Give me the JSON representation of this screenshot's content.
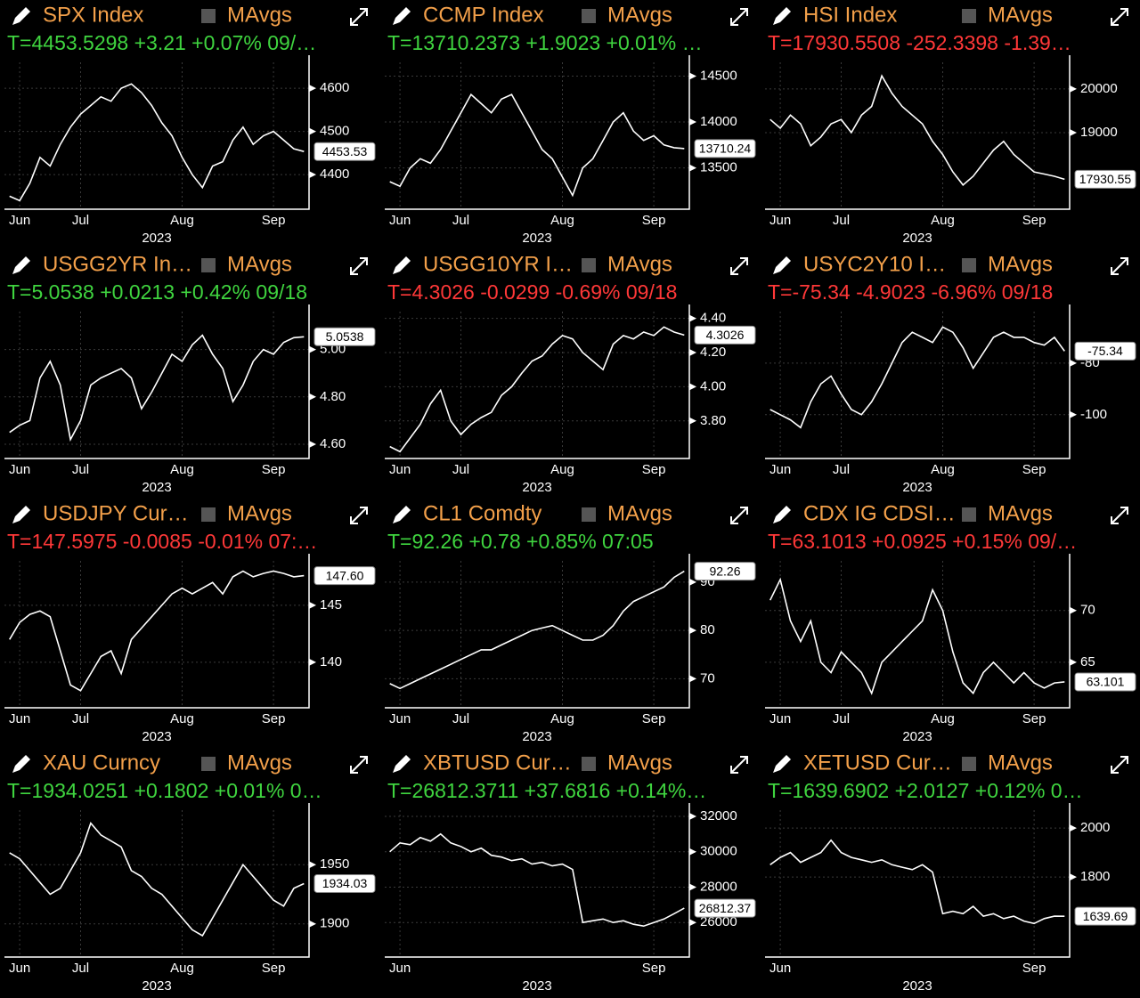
{
  "chart_data": [
    {
      "type": "line",
      "title": "SPX Index",
      "legend": "MAvgs",
      "quote": "T=4453.5298 +3.21 +0.07% 09/…",
      "quote_color": "#3fd43f",
      "title_color": "#f3a04a",
      "color": "#ffffff",
      "grid": true,
      "categories": [
        null,
        "Jun",
        null,
        null,
        null,
        null,
        null,
        "Jul",
        null,
        null,
        null,
        null,
        null,
        null,
        null,
        null,
        null,
        "Aug",
        null,
        null,
        null,
        null,
        null,
        null,
        null,
        null,
        "Sep",
        null,
        null,
        null
      ],
      "xlabel": "2023",
      "values": [
        4350,
        4340,
        4380,
        4440,
        4420,
        4470,
        4510,
        4540,
        4560,
        4580,
        4570,
        4600,
        4610,
        4590,
        4560,
        4520,
        4490,
        4440,
        4400,
        4370,
        4420,
        4430,
        4480,
        4510,
        4470,
        4490,
        4500,
        4480,
        4460,
        4453.53
      ],
      "ylim": [
        4320,
        4660
      ],
      "yticks": [
        4400,
        4500,
        4600
      ],
      "last_value": 4453.53
    },
    {
      "type": "line",
      "title": "CCMP Index",
      "legend": "MAvgs",
      "quote": "T=13710.2373 +1.9023 +0.01% …",
      "quote_color": "#3fd43f",
      "title_color": "#f3a04a",
      "color": "#ffffff",
      "grid": true,
      "categories": [
        null,
        "Jun",
        null,
        null,
        null,
        null,
        null,
        "Jul",
        null,
        null,
        null,
        null,
        null,
        null,
        null,
        null,
        null,
        "Aug",
        null,
        null,
        null,
        null,
        null,
        null,
        null,
        null,
        "Sep",
        null,
        null,
        null
      ],
      "xlabel": "2023",
      "values": [
        13350,
        13300,
        13500,
        13600,
        13550,
        13700,
        13900,
        14100,
        14300,
        14200,
        14100,
        14250,
        14300,
        14100,
        13900,
        13700,
        13600,
        13400,
        13200,
        13500,
        13600,
        13800,
        14000,
        14100,
        13900,
        13800,
        13850,
        13750,
        13720,
        13710.24
      ],
      "ylim": [
        13050,
        14650
      ],
      "yticks": [
        13500,
        14000,
        14500
      ],
      "last_value": 13710.24
    },
    {
      "type": "line",
      "title": "HSI Index",
      "legend": "MAvgs",
      "quote": "T=17930.5508 -252.3398 -1.39…",
      "quote_color": "#ff3838",
      "title_color": "#f3a04a",
      "color": "#ffffff",
      "grid": true,
      "categories": [
        null,
        "Jun",
        null,
        null,
        null,
        null,
        null,
        "Jul",
        null,
        null,
        null,
        null,
        null,
        null,
        null,
        null,
        null,
        "Aug",
        null,
        null,
        null,
        null,
        null,
        null,
        null,
        null,
        "Sep",
        null,
        null,
        null
      ],
      "xlabel": "2023",
      "values": [
        19300,
        19100,
        19400,
        19200,
        18700,
        18900,
        19200,
        19300,
        19000,
        19400,
        19600,
        20300,
        19900,
        19600,
        19400,
        19200,
        18800,
        18500,
        18100,
        17800,
        18000,
        18300,
        18600,
        18800,
        18500,
        18300,
        18100,
        18050,
        18000,
        17930.55
      ],
      "ylim": [
        17245,
        20610
      ],
      "yticks": [
        19000,
        20000
      ],
      "last_value": 17930.55
    },
    {
      "type": "line",
      "title": "USGG2YR In…",
      "legend": "MAvgs",
      "quote": "T=5.0538 +0.0213 +0.42% 09/18",
      "quote_color": "#3fd43f",
      "title_color": "#f3a04a",
      "color": "#ffffff",
      "grid": true,
      "categories": [
        null,
        "Jun",
        null,
        null,
        null,
        null,
        null,
        "Jul",
        null,
        null,
        null,
        null,
        null,
        null,
        null,
        null,
        null,
        "Aug",
        null,
        null,
        null,
        null,
        null,
        null,
        null,
        null,
        "Sep",
        null,
        null,
        null
      ],
      "xlabel": "2023",
      "values": [
        4.65,
        4.68,
        4.7,
        4.88,
        4.95,
        4.85,
        4.62,
        4.7,
        4.85,
        4.88,
        4.9,
        4.92,
        4.88,
        4.75,
        4.82,
        4.9,
        4.98,
        4.95,
        5.02,
        5.06,
        4.98,
        4.92,
        4.78,
        4.85,
        4.95,
        5,
        4.98,
        5.03,
        5.05,
        5.0538
      ],
      "ylim": [
        4.54,
        5.16
      ],
      "yticks": [
        {
          "value": 4.6,
          "label": "4.60"
        },
        {
          "value": 4.8,
          "label": "4.80"
        },
        {
          "value": 5,
          "label": "5.00"
        }
      ],
      "last_value": 5.0538
    },
    {
      "type": "line",
      "title": "USGG10YR I…",
      "legend": "MAvgs",
      "quote": "T=4.3026 -0.0299 -0.69% 09/18",
      "quote_color": "#ff3838",
      "title_color": "#f3a04a",
      "color": "#ffffff",
      "grid": true,
      "categories": [
        null,
        "Jun",
        null,
        null,
        null,
        null,
        null,
        "Jul",
        null,
        null,
        null,
        null,
        null,
        null,
        null,
        null,
        null,
        "Aug",
        null,
        null,
        null,
        null,
        null,
        null,
        null,
        null,
        "Sep",
        null,
        null,
        null
      ],
      "xlabel": "2023",
      "values": [
        3.65,
        3.62,
        3.7,
        3.78,
        3.9,
        3.98,
        3.8,
        3.72,
        3.78,
        3.82,
        3.85,
        3.95,
        4,
        4.08,
        4.15,
        4.18,
        4.25,
        4.3,
        4.28,
        4.2,
        4.15,
        4.1,
        4.25,
        4.3,
        4.28,
        4.32,
        4.3,
        4.35,
        4.32,
        4.3026
      ],
      "ylim": [
        3.58,
        4.44
      ],
      "yticks": [
        {
          "value": 3.8,
          "label": "3.80"
        },
        {
          "value": 4,
          "label": "4.00"
        },
        {
          "value": 4.2,
          "label": "4.20"
        },
        {
          "value": 4.4,
          "label": "4.40"
        }
      ],
      "last_value": 4.3026
    },
    {
      "type": "line",
      "title": "USYC2Y10 I…",
      "legend": "MAvgs",
      "quote": "T=-75.34 -4.9023 -6.96% 09/18",
      "quote_color": "#ff3838",
      "title_color": "#f3a04a",
      "color": "#ffffff",
      "grid": true,
      "categories": [
        null,
        "Jun",
        null,
        null,
        null,
        null,
        null,
        "Jul",
        null,
        null,
        null,
        null,
        null,
        null,
        null,
        null,
        null,
        "Aug",
        null,
        null,
        null,
        null,
        null,
        null,
        null,
        null,
        "Sep",
        null,
        null,
        null
      ],
      "xlabel": "2023",
      "values": [
        -98,
        -100,
        -102,
        -105,
        -95,
        -88,
        -85,
        -92,
        -98,
        -100,
        -95,
        -88,
        -80,
        -72,
        -68,
        -70,
        -72,
        -66,
        -68,
        -74,
        -82,
        -76,
        -70,
        -68,
        -70,
        -70,
        -72,
        -73,
        -70,
        -75.34
      ],
      "ylim": [
        -117,
        -60
      ],
      "yticks": [
        -100,
        -80
      ],
      "last_value": -75.34
    },
    {
      "type": "line",
      "title": "USDJPY Cur…",
      "legend": "MAvgs",
      "quote": "T=147.5975 -0.0085 -0.01% 07:…",
      "quote_color": "#ff3838",
      "title_color": "#f3a04a",
      "color": "#ffffff",
      "grid": true,
      "categories": [
        null,
        "Jun",
        null,
        null,
        null,
        null,
        null,
        "Jul",
        null,
        null,
        null,
        null,
        null,
        null,
        null,
        null,
        null,
        "Aug",
        null,
        null,
        null,
        null,
        null,
        null,
        null,
        null,
        "Sep",
        null,
        null,
        null
      ],
      "xlabel": "2023",
      "values": [
        142,
        143.5,
        144.2,
        144.5,
        144,
        141,
        138,
        137.5,
        139,
        140.5,
        141,
        139,
        142,
        143,
        144,
        145,
        146,
        146.5,
        146,
        146.5,
        147,
        146,
        147.5,
        148,
        147.5,
        147.8,
        148,
        147.8,
        147.5,
        147.6
      ],
      "ylim": [
        136,
        148.9
      ],
      "yticks": [
        140,
        145
      ],
      "last_value": {
        "value": 147.6,
        "label": "147.60"
      }
    },
    {
      "type": "line",
      "title": "CL1 Comdty",
      "legend": "MAvgs",
      "quote": "T=92.26 +0.78 +0.85% 07:05",
      "quote_color": "#3fd43f",
      "title_color": "#f3a04a",
      "color": "#ffffff",
      "grid": true,
      "categories": [
        null,
        "Jun",
        null,
        null,
        null,
        null,
        null,
        "Jul",
        null,
        null,
        null,
        null,
        null,
        null,
        null,
        null,
        null,
        "Aug",
        null,
        null,
        null,
        null,
        null,
        null,
        null,
        null,
        "Sep",
        null,
        null,
        null
      ],
      "xlabel": "2023",
      "values": [
        69,
        68,
        69,
        70,
        71,
        72,
        73,
        74,
        75,
        76,
        76,
        77,
        78,
        79,
        80,
        80.5,
        81,
        80,
        79,
        78,
        78,
        79,
        81,
        84,
        86,
        87,
        88,
        89,
        91,
        92.26
      ],
      "ylim": [
        64,
        94.4
      ],
      "yticks": [
        70,
        80,
        90
      ],
      "last_value": 92.26
    },
    {
      "type": "line",
      "title": "CDX IG CDSI…",
      "legend": "MAvgs",
      "quote": "T=63.1013 +0.0925 +0.15% 09/…",
      "quote_color": "#ff3838",
      "title_color": "#f3a04a",
      "color": "#ffffff",
      "grid": true,
      "categories": [
        null,
        "Jun",
        null,
        null,
        null,
        null,
        null,
        "Jul",
        null,
        null,
        null,
        null,
        null,
        null,
        null,
        null,
        null,
        "Aug",
        null,
        null,
        null,
        null,
        null,
        null,
        null,
        null,
        "Sep",
        null,
        null,
        null
      ],
      "xlabel": "2023",
      "values": [
        71,
        73,
        69,
        67,
        69,
        65,
        64,
        66,
        65,
        64,
        62,
        65,
        66,
        67,
        68,
        69,
        72,
        70,
        66,
        63,
        62,
        64,
        65,
        64,
        63,
        64,
        63,
        62.5,
        63,
        63.101
      ],
      "ylim": [
        60.6,
        74.8
      ],
      "yticks": [
        65,
        70
      ],
      "last_value": 63.101
    },
    {
      "type": "line",
      "title": "XAU Curncy",
      "legend": "MAvgs",
      "quote": "T=1934.0251 +0.1802 +0.01% 0…",
      "quote_color": "#3fd43f",
      "title_color": "#f3a04a",
      "color": "#ffffff",
      "grid": true,
      "categories": [
        null,
        "Jun",
        null,
        null,
        null,
        null,
        null,
        "Jul",
        null,
        null,
        null,
        null,
        null,
        null,
        null,
        null,
        null,
        "Aug",
        null,
        null,
        null,
        null,
        null,
        null,
        null,
        null,
        "Sep",
        null,
        null,
        null
      ],
      "xlabel": "2023",
      "values": [
        1960,
        1955,
        1945,
        1935,
        1925,
        1930,
        1945,
        1960,
        1985,
        1975,
        1970,
        1965,
        1945,
        1940,
        1930,
        1925,
        1915,
        1905,
        1895,
        1890,
        1905,
        1920,
        1935,
        1950,
        1940,
        1930,
        1920,
        1915,
        1930,
        1934.03
      ],
      "ylim": [
        1872,
        1996
      ],
      "yticks": [
        1900,
        1950
      ],
      "last_value": 1934.03
    },
    {
      "type": "line",
      "title": "XBTUSD Cur…",
      "legend": "MAvgs",
      "quote": "T=26812.3711 +37.6816 +0.14%…",
      "quote_color": "#3fd43f",
      "title_color": "#f3a04a",
      "color": "#ffffff",
      "grid": true,
      "categories": [
        null,
        "Jun",
        null,
        null,
        null,
        null,
        null,
        null,
        null,
        null,
        null,
        null,
        null,
        null,
        null,
        null,
        null,
        null,
        null,
        null,
        null,
        null,
        null,
        null,
        null,
        null,
        "Sep",
        null,
        null,
        null
      ],
      "xlabel": "2023",
      "values": [
        30000,
        30500,
        30400,
        30800,
        30600,
        31000,
        30500,
        30300,
        30000,
        30200,
        29800,
        29700,
        29500,
        29600,
        29300,
        29400,
        29200,
        29300,
        29000,
        26000,
        26100,
        26200,
        26000,
        26100,
        25900,
        25800,
        26000,
        26200,
        26500,
        26812.37
      ],
      "ylim": [
        24050,
        32350
      ],
      "yticks": [
        26000,
        28000,
        30000,
        32000
      ],
      "last_value": 26812.37
    },
    {
      "type": "line",
      "title": "XETUSD Cur…",
      "legend": "MAvgs",
      "quote": "T=1639.6902 +2.0127 +0.12% 0…",
      "quote_color": "#3fd43f",
      "title_color": "#f3a04a",
      "color": "#ffffff",
      "grid": true,
      "categories": [
        null,
        "Jun",
        null,
        null,
        null,
        null,
        null,
        null,
        null,
        null,
        null,
        null,
        null,
        null,
        null,
        null,
        null,
        null,
        null,
        null,
        null,
        null,
        null,
        null,
        null,
        null,
        "Sep",
        null,
        null,
        null
      ],
      "xlabel": "2023",
      "values": [
        1850,
        1880,
        1900,
        1860,
        1880,
        1900,
        1950,
        1900,
        1880,
        1870,
        1860,
        1870,
        1850,
        1840,
        1830,
        1850,
        1820,
        1650,
        1660,
        1650,
        1680,
        1640,
        1650,
        1630,
        1640,
        1620,
        1610,
        1630,
        1640,
        1639.69
      ],
      "ylim": [
        1473,
        2073
      ],
      "yticks": [
        1800,
        2000
      ],
      "last_value": 1639.69
    }
  ]
}
